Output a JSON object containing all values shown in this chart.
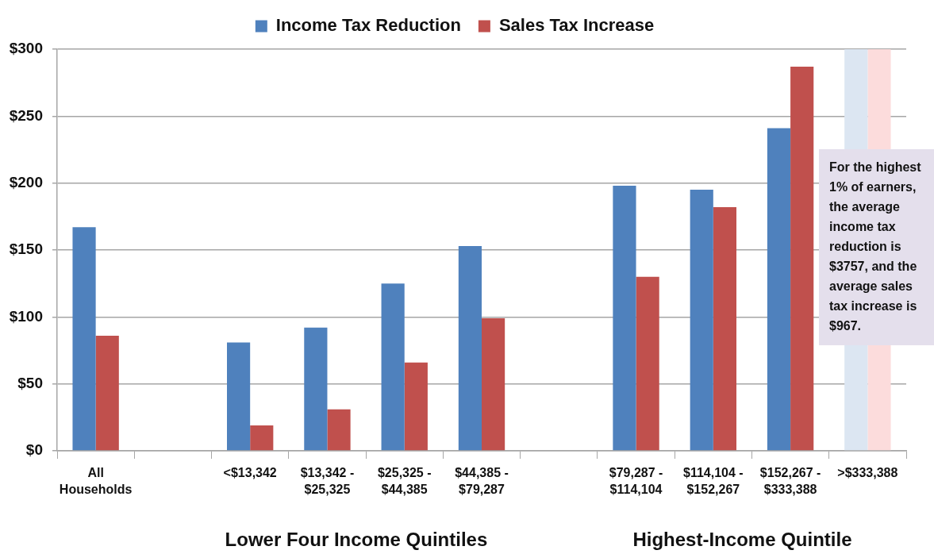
{
  "chart_data": {
    "type": "bar",
    "categories": [
      "All Households",
      null,
      "<$13,342",
      "$13,342 - $25,325",
      "$25,325 - $44,385",
      "$44,385 - $79,287",
      null,
      "$79,287 - $114,104",
      "$114,104 - $152,267",
      "$152,267 - $333,388",
      ">$333,388"
    ],
    "series": [
      {
        "name": "Income Tax Reduction",
        "color": "#4f81bd",
        "colors": [
          "#4f81bd",
          "#4f81bd",
          "#4f81bd",
          "#4f81bd",
          "#4f81bd",
          "#4f81bd",
          "#4f81bd",
          "#4f81bd",
          "#4f81bd",
          "#4f81bd",
          "#dce6f2"
        ],
        "values": [
          167,
          null,
          81,
          92,
          125,
          153,
          null,
          198,
          195,
          241,
          300
        ]
      },
      {
        "name": "Sales Tax Increase",
        "color": "#c0504d",
        "colors": [
          "#c0504d",
          "#c0504d",
          "#c0504d",
          "#c0504d",
          "#c0504d",
          "#c0504d",
          "#c0504d",
          "#c0504d",
          "#c0504d",
          "#c0504d",
          "#fcdcdc"
        ],
        "values": [
          86,
          null,
          19,
          31,
          66,
          99,
          null,
          130,
          182,
          287,
          300
        ]
      }
    ],
    "ylim": [
      0,
      300
    ],
    "yticks": [
      {
        "value": 0,
        "label": "$0"
      },
      {
        "value": 50,
        "label": "$50"
      },
      {
        "value": 100,
        "label": "$100"
      },
      {
        "value": 150,
        "label": "$150"
      },
      {
        "value": 200,
        "label": "$200"
      },
      {
        "value": 250,
        "label": "$250"
      },
      {
        "value": 300,
        "label": "$300"
      }
    ],
    "grid": "y",
    "legend": "top",
    "annotations": [
      "Lower Four Income Quintiles",
      "Highest-Income Quintile",
      "For the highest 1% of earners, the average income tax reduction is $3757, and the average sales tax increase is $967."
    ]
  }
}
